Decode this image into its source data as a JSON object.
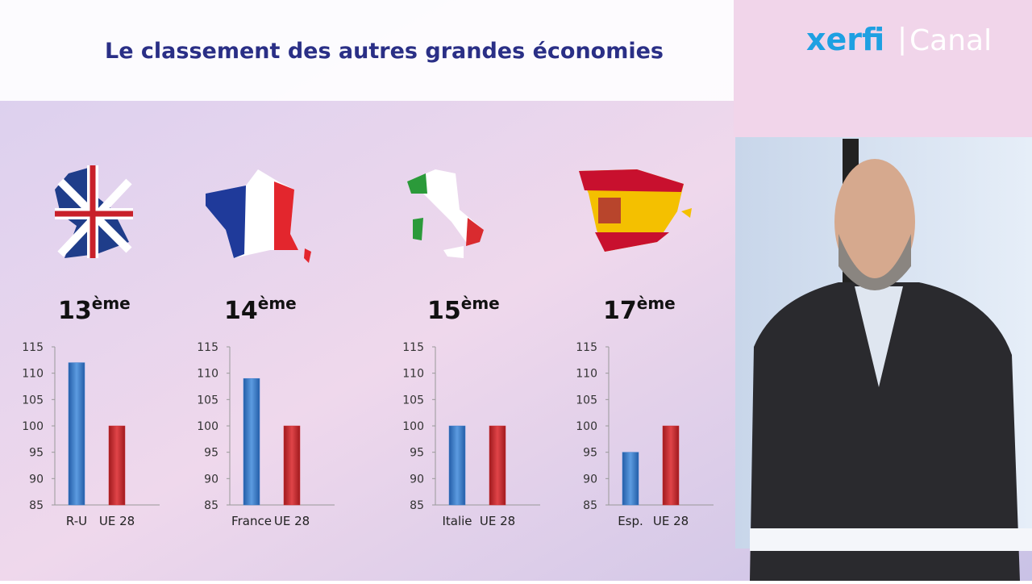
{
  "title": "Le classement des autres grandes économies",
  "logo": {
    "brand": "xerfi",
    "channel": "Canal"
  },
  "chart_data": [
    {
      "type": "bar",
      "rank": "13",
      "rank_suffix": "ème",
      "categories": [
        "R-U",
        "UE 28"
      ],
      "values": [
        112,
        100
      ],
      "colors": [
        "#3a7bcb",
        "#cc2a2e"
      ],
      "ylim": [
        85,
        115
      ],
      "yticks": [
        85,
        90,
        95,
        100,
        105,
        110,
        115
      ]
    },
    {
      "type": "bar",
      "rank": "14",
      "rank_suffix": "ème",
      "categories": [
        "France",
        "UE 28"
      ],
      "values": [
        109,
        100
      ],
      "colors": [
        "#3a7bcb",
        "#cc2a2e"
      ],
      "ylim": [
        85,
        115
      ],
      "yticks": [
        85,
        90,
        95,
        100,
        105,
        110,
        115
      ]
    },
    {
      "type": "bar",
      "rank": "15",
      "rank_suffix": "ème",
      "categories": [
        "Italie",
        "UE 28"
      ],
      "values": [
        100,
        100
      ],
      "colors": [
        "#3a7bcb",
        "#cc2a2e"
      ],
      "ylim": [
        85,
        115
      ],
      "yticks": [
        85,
        90,
        95,
        100,
        105,
        110,
        115
      ]
    },
    {
      "type": "bar",
      "rank": "17",
      "rank_suffix": "ème",
      "categories": [
        "Esp.",
        "UE 28"
      ],
      "values": [
        95,
        100
      ],
      "colors": [
        "#3a7bcb",
        "#cc2a2e"
      ],
      "ylim": [
        85,
        115
      ],
      "yticks": [
        85,
        90,
        95,
        100,
        105,
        110,
        115
      ]
    }
  ]
}
